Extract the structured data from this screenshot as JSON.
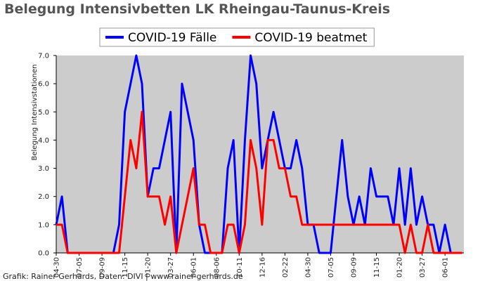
{
  "chart_data": {
    "type": "line",
    "title": "Belegung Intensivbetten LK Rheingau-Taunus-Kreis",
    "y_label": "Belegung Intensivstationen",
    "footer": "Grafik: Rainer Gerhards, Daten: DIVI | www.rainer-gerhards.de",
    "categories": [
      "04-30",
      null,
      null,
      null,
      "07-05",
      null,
      null,
      null,
      "09-09",
      null,
      null,
      null,
      "11-15",
      null,
      null,
      null,
      "01-20",
      null,
      null,
      null,
      "03-27",
      null,
      null,
      null,
      "06-01",
      null,
      null,
      null,
      "08-06",
      null,
      null,
      null,
      "10-11",
      null,
      null,
      null,
      "12-16",
      null,
      null,
      null,
      "02-22",
      null,
      null,
      null,
      "04-30",
      null,
      null,
      null,
      "07-05",
      null,
      null,
      null,
      "09-09",
      null,
      null,
      null,
      "11-15",
      null,
      null,
      null,
      "01-20",
      null,
      null,
      null,
      "03-27",
      null,
      null,
      null,
      "06-01",
      null,
      null,
      null
    ],
    "series": [
      {
        "name": "COVID-19 Fälle",
        "color": "#0000ff",
        "values": [
          1,
          2,
          0,
          0,
          0,
          0,
          0,
          0,
          0,
          0,
          0,
          1,
          5,
          6,
          7,
          6,
          2,
          3,
          3,
          4,
          5,
          0,
          6,
          5,
          4,
          1,
          0,
          0,
          0,
          0,
          3,
          4,
          0,
          4,
          7,
          6,
          3,
          4,
          5,
          4,
          3,
          3,
          4,
          3,
          1,
          1,
          0,
          0,
          0,
          2,
          4,
          2,
          1,
          2,
          1,
          3,
          2,
          2,
          2,
          1,
          3,
          1,
          3,
          1,
          2,
          1,
          1,
          0,
          1,
          0,
          0,
          0
        ]
      },
      {
        "name": "COVID-19 beatmet",
        "color": "#ff0000",
        "values": [
          1,
          1,
          0,
          0,
          0,
          0,
          0,
          0,
          0,
          0,
          0,
          0,
          2,
          4,
          3,
          5,
          2,
          2,
          2,
          1,
          2,
          0,
          1,
          2,
          3,
          1,
          1,
          0,
          0,
          0,
          1,
          1,
          0,
          1,
          4,
          3,
          1,
          4,
          4,
          3,
          3,
          2,
          2,
          1,
          1,
          1,
          1,
          1,
          1,
          1,
          1,
          1,
          1,
          1,
          1,
          1,
          1,
          1,
          1,
          1,
          1,
          0,
          1,
          0,
          0,
          1,
          0,
          0,
          0,
          0,
          0,
          0
        ]
      }
    ],
    "ylim": [
      0,
      7
    ],
    "yticks": [
      {
        "value": 0,
        "label": "0.0"
      },
      {
        "value": 1,
        "label": "1.0"
      },
      {
        "value": 2,
        "label": "2.0"
      },
      {
        "value": 3,
        "label": "3.0"
      },
      {
        "value": 4,
        "label": "4.0"
      },
      {
        "value": 5,
        "label": "5.0"
      },
      {
        "value": 6,
        "label": "6.0"
      },
      {
        "value": 7,
        "label": "7.0"
      }
    ],
    "legend": "top",
    "grid": false
  }
}
